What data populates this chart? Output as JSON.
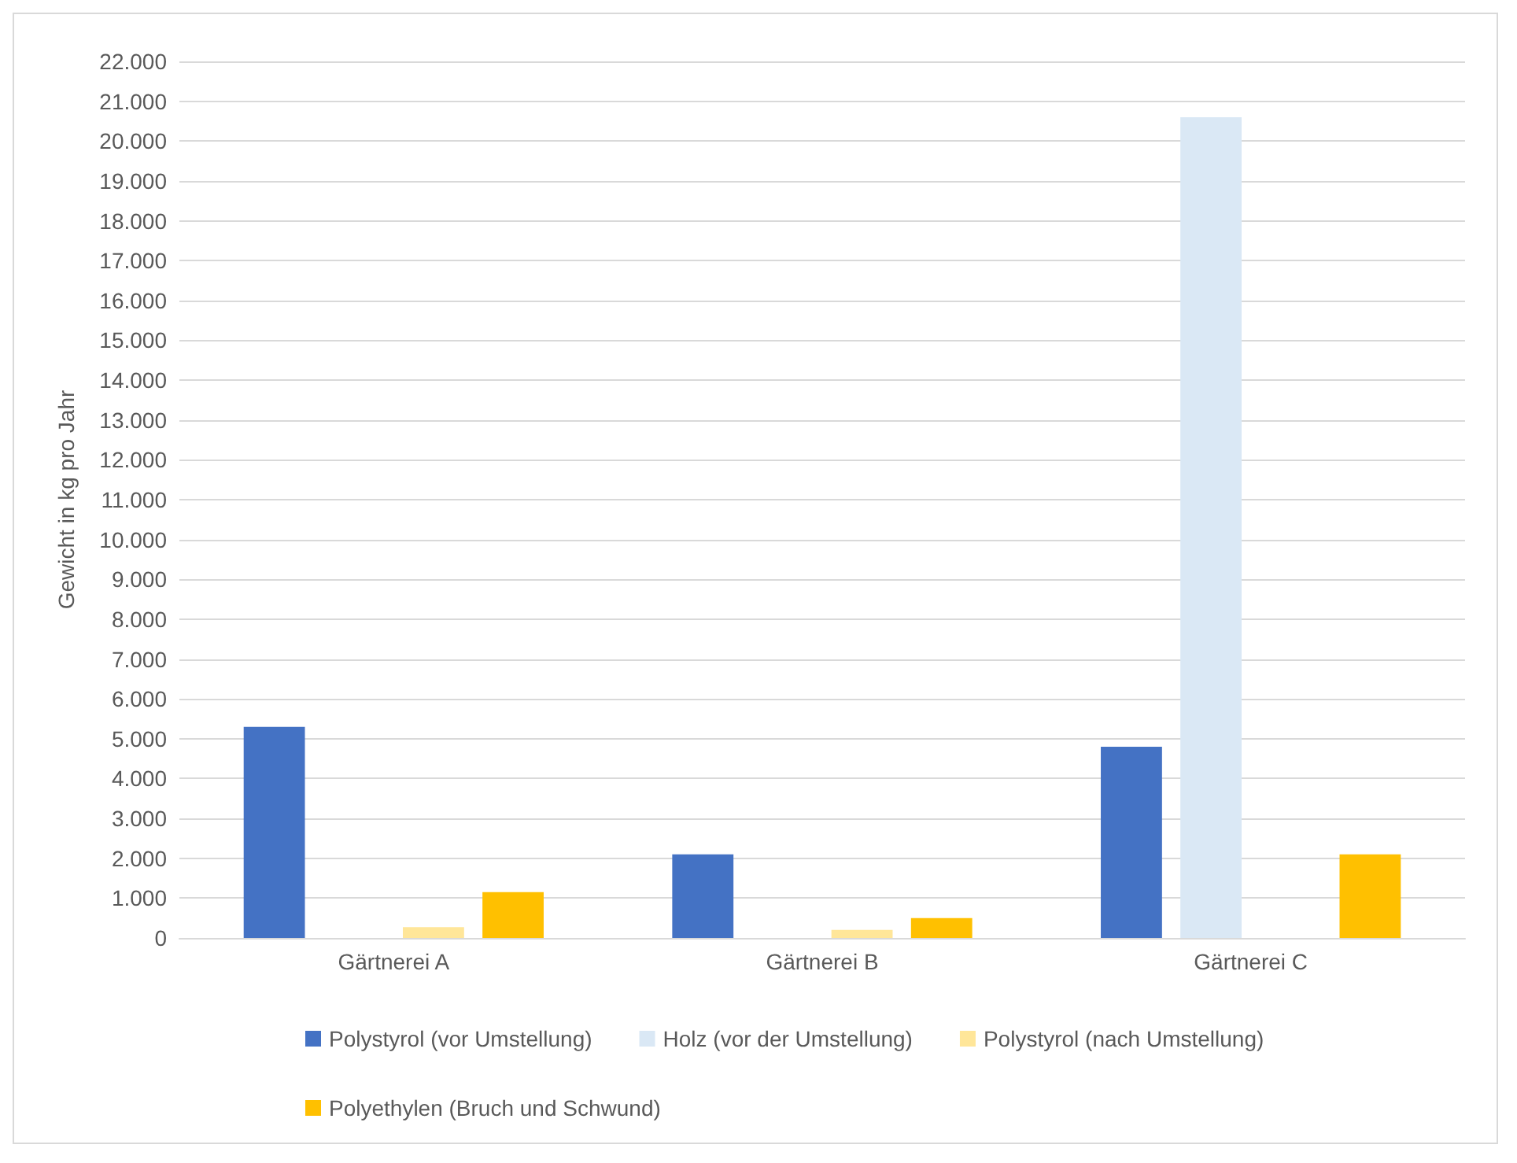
{
  "chart_data": {
    "type": "bar",
    "ylabel": "Gewicht in kg pro Jahr",
    "categories": [
      "Gärtnerei A",
      "Gärtnerei B",
      "Gärtnerei C"
    ],
    "series": [
      {
        "name": "Polystyrol (vor Umstellung)",
        "color": "#4472c4",
        "values": [
          5300,
          2100,
          4800
        ]
      },
      {
        "name": "Holz (vor der Umstellung)",
        "color": "#dae8f5",
        "values": [
          null,
          null,
          20600
        ]
      },
      {
        "name": "Polystyrol (nach Umstellung)",
        "color": "#ffe699",
        "values": [
          270,
          200,
          null
        ]
      },
      {
        "name": "Polyethylen (Bruch und Schwund)",
        "color": "#ffc000",
        "values": [
          1150,
          500,
          2100
        ]
      }
    ],
    "ylim": [
      0,
      22000
    ],
    "yticks": [
      {
        "value": 0,
        "label": "0"
      },
      {
        "value": 1000,
        "label": "1.000"
      },
      {
        "value": 2000,
        "label": "2.000"
      },
      {
        "value": 3000,
        "label": "3.000"
      },
      {
        "value": 4000,
        "label": "4.000"
      },
      {
        "value": 5000,
        "label": "5.000"
      },
      {
        "value": 6000,
        "label": "6.000"
      },
      {
        "value": 7000,
        "label": "7.000"
      },
      {
        "value": 8000,
        "label": "8.000"
      },
      {
        "value": 9000,
        "label": "9.000"
      },
      {
        "value": 10000,
        "label": "10.000"
      },
      {
        "value": 11000,
        "label": "11.000"
      },
      {
        "value": 12000,
        "label": "12.000"
      },
      {
        "value": 13000,
        "label": "13.000"
      },
      {
        "value": 14000,
        "label": "14.000"
      },
      {
        "value": 15000,
        "label": "15.000"
      },
      {
        "value": 16000,
        "label": "16.000"
      },
      {
        "value": 17000,
        "label": "17.000"
      },
      {
        "value": 18000,
        "label": "18.000"
      },
      {
        "value": 19000,
        "label": "19.000"
      },
      {
        "value": 20000,
        "label": "20.000"
      },
      {
        "value": 21000,
        "label": "21.000"
      },
      {
        "value": 22000,
        "label": "22.000"
      }
    ],
    "grid": "y",
    "legend": "bottom"
  }
}
